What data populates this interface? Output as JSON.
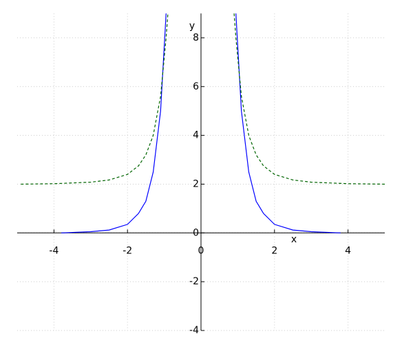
{
  "chart_data": {
    "type": "line",
    "xlabel": "x",
    "ylabel": "y",
    "xlim": [
      -5,
      5
    ],
    "ylim": [
      -4,
      9
    ],
    "xticks": [
      -4,
      -2,
      0,
      2,
      4
    ],
    "yticks": [
      -4,
      -2,
      0,
      2,
      4,
      6,
      8
    ],
    "grid": true,
    "series": [
      {
        "color": "#0000ff",
        "style": "solid",
        "x": [
          -3.8,
          -3,
          -2.5,
          -2,
          -1.7,
          -1.5,
          -1.3,
          -1.1,
          -0.95,
          0.95,
          1.1,
          1.3,
          1.5,
          1.7,
          2,
          2.5,
          3,
          3.8
        ],
        "values": [
          0.0,
          0.05,
          0.12,
          0.35,
          0.8,
          1.3,
          2.5,
          5,
          9,
          9,
          5,
          2.5,
          1.3,
          0.8,
          0.35,
          0.12,
          0.05,
          0.0
        ]
      },
      {
        "color": "#006400",
        "style": "dashed",
        "x": [
          -4.9,
          -4,
          -3,
          -2.5,
          -2,
          -1.7,
          -1.5,
          -1.3,
          -1.1,
          -0.95,
          -0.9,
          0.9,
          0.95,
          1.1,
          1.3,
          1.5,
          1.7,
          2,
          2.5,
          3,
          4,
          5
        ],
        "values": [
          2.0,
          2.02,
          2.08,
          2.17,
          2.4,
          2.75,
          3.2,
          4.0,
          5.6,
          8.0,
          9,
          9,
          8.0,
          5.6,
          4.0,
          3.2,
          2.75,
          2.4,
          2.17,
          2.08,
          2.02,
          2.0
        ]
      }
    ]
  }
}
